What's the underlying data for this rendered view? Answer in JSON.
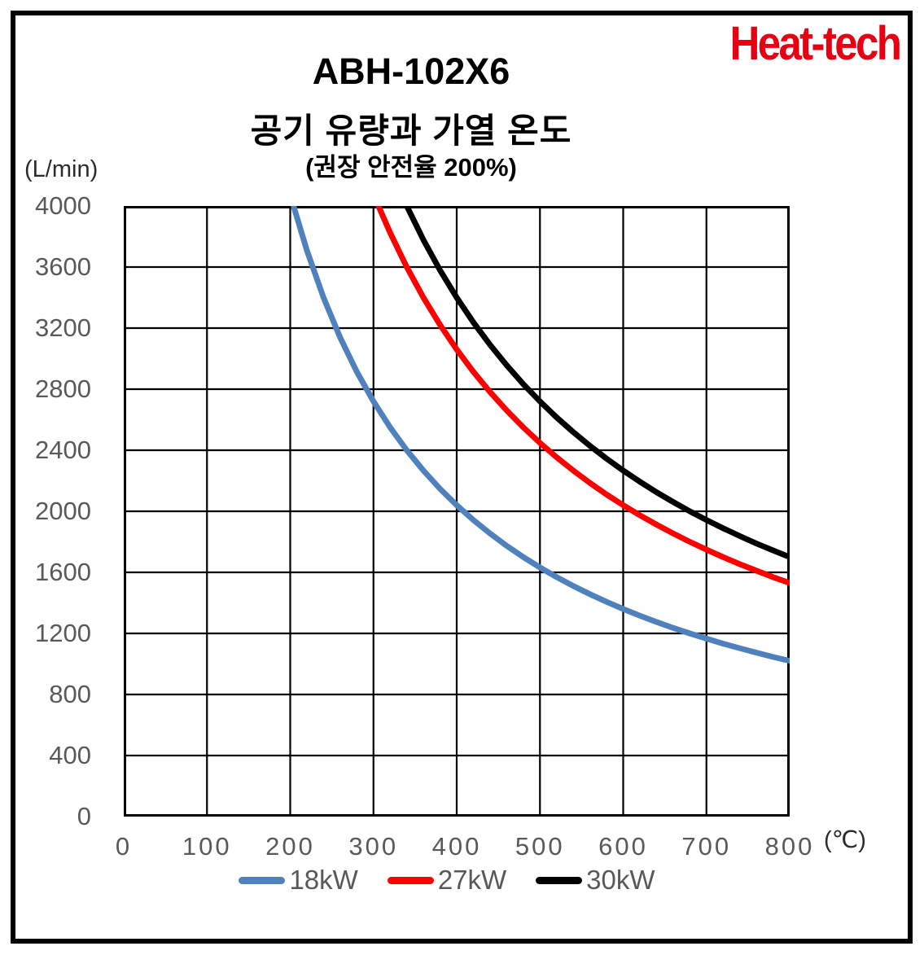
{
  "logo": {
    "text": "Heat-tech",
    "color": "#e50012"
  },
  "header": {
    "title": "ABH-102X6",
    "subtitle": "공기 유량과 가열 온도",
    "note": "(권장 안전율 200%)"
  },
  "y_axis": {
    "unit_label": "(L/min)",
    "min": 0,
    "max": 4000,
    "ticks": [
      0,
      400,
      800,
      1200,
      1600,
      2000,
      2400,
      2800,
      3200,
      3600,
      4000
    ]
  },
  "x_axis": {
    "unit_label": "(℃)",
    "min": 0,
    "max": 800,
    "ticks": [
      0,
      100,
      200,
      300,
      400,
      500,
      600,
      700,
      800
    ]
  },
  "colors": {
    "grid": "#000000",
    "plot_border": "#000000",
    "tick_text": "#595959"
  },
  "legend": [
    {
      "label": "18kW",
      "color": "#4f81bd"
    },
    {
      "label": "27kW",
      "color": "#fe0000"
    },
    {
      "label": "30kW",
      "color": "#000000"
    }
  ],
  "chart_data": {
    "type": "line",
    "title": "공기 유량과 가열 온도",
    "subtitle": "(권장 안전율 200%)",
    "xlabel": "(℃)",
    "ylabel": "(L/min)",
    "xlim": [
      0,
      800
    ],
    "ylim": [
      0,
      4000
    ],
    "x_ticks_step": 100,
    "y_ticks_step": 400,
    "grid": true,
    "legend_position": "bottom",
    "series": [
      {
        "name": "18kW",
        "color": "#4f81bd",
        "points": [
          [
            204,
            4000
          ],
          [
            220,
            3709
          ],
          [
            240,
            3400
          ],
          [
            260,
            3138
          ],
          [
            280,
            2914
          ],
          [
            300,
            2720
          ],
          [
            320,
            2550
          ],
          [
            340,
            2400
          ],
          [
            360,
            2267
          ],
          [
            380,
            2147
          ],
          [
            400,
            2040
          ],
          [
            420,
            1943
          ],
          [
            440,
            1855
          ],
          [
            460,
            1774
          ],
          [
            480,
            1700
          ],
          [
            500,
            1632
          ],
          [
            520,
            1569
          ],
          [
            540,
            1511
          ],
          [
            560,
            1457
          ],
          [
            580,
            1407
          ],
          [
            600,
            1360
          ],
          [
            620,
            1316
          ],
          [
            640,
            1275
          ],
          [
            660,
            1236
          ],
          [
            680,
            1200
          ],
          [
            700,
            1166
          ],
          [
            720,
            1133
          ],
          [
            740,
            1103
          ],
          [
            760,
            1074
          ],
          [
            780,
            1046
          ],
          [
            800,
            1020
          ]
        ]
      },
      {
        "name": "27kW",
        "color": "#fe0000",
        "points": [
          [
            306,
            4000
          ],
          [
            320,
            3825
          ],
          [
            340,
            3600
          ],
          [
            360,
            3400
          ],
          [
            380,
            3221
          ],
          [
            400,
            3060
          ],
          [
            420,
            2914
          ],
          [
            440,
            2782
          ],
          [
            460,
            2661
          ],
          [
            480,
            2550
          ],
          [
            500,
            2448
          ],
          [
            520,
            2354
          ],
          [
            540,
            2267
          ],
          [
            560,
            2186
          ],
          [
            580,
            2110
          ],
          [
            600,
            2040
          ],
          [
            620,
            1974
          ],
          [
            640,
            1913
          ],
          [
            660,
            1855
          ],
          [
            680,
            1800
          ],
          [
            700,
            1749
          ],
          [
            720,
            1700
          ],
          [
            740,
            1654
          ],
          [
            760,
            1611
          ],
          [
            780,
            1569
          ],
          [
            800,
            1530
          ]
        ]
      },
      {
        "name": "30kW",
        "color": "#000000",
        "points": [
          [
            340,
            4000
          ],
          [
            360,
            3778
          ],
          [
            380,
            3579
          ],
          [
            400,
            3400
          ],
          [
            420,
            3238
          ],
          [
            440,
            3091
          ],
          [
            460,
            2957
          ],
          [
            480,
            2833
          ],
          [
            500,
            2720
          ],
          [
            520,
            2615
          ],
          [
            540,
            2519
          ],
          [
            560,
            2429
          ],
          [
            580,
            2345
          ],
          [
            600,
            2267
          ],
          [
            620,
            2194
          ],
          [
            640,
            2125
          ],
          [
            660,
            2061
          ],
          [
            680,
            2000
          ],
          [
            700,
            1943
          ],
          [
            720,
            1889
          ],
          [
            740,
            1838
          ],
          [
            760,
            1789
          ],
          [
            780,
            1744
          ],
          [
            800,
            1700
          ]
        ]
      }
    ]
  }
}
